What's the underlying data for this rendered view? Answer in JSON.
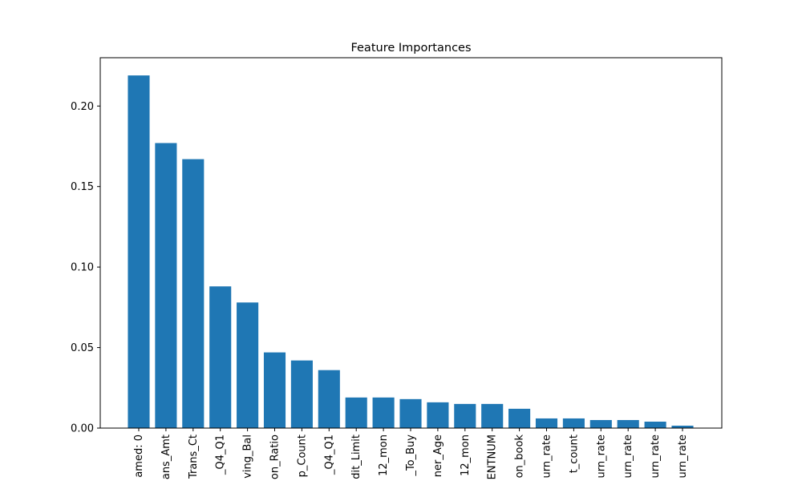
{
  "chart_data": {
    "type": "bar",
    "title": "Feature Importances",
    "xlabel": "",
    "ylabel": "",
    "ylim": [
      0,
      0.23
    ],
    "yticks": [
      0.0,
      0.05,
      0.1,
      0.15,
      0.2
    ],
    "ytick_labels": [
      "0.00",
      "0.05",
      "0.10",
      "0.15",
      "0.20"
    ],
    "categories": [
      "amed: 0",
      "ans_Amt",
      "Trans_Ct",
      "_Q4_Q1",
      "ving_Bal",
      "on_Ratio",
      "p_Count",
      "_Q4_Q1",
      "dit_Limit",
      "12_mon",
      "_To_Buy",
      "ner_Age",
      "12_mon",
      "ENTNUM",
      "on_book",
      "urn_rate",
      "t_count",
      "urn_rate",
      "urn_rate",
      "urn_rate",
      "urn_rate"
    ],
    "values": [
      0.219,
      0.177,
      0.167,
      0.088,
      0.078,
      0.047,
      0.042,
      0.036,
      0.019,
      0.019,
      0.018,
      0.016,
      0.015,
      0.015,
      0.012,
      0.006,
      0.006,
      0.005,
      0.005,
      0.004,
      0.0015
    ],
    "bar_color": "#1f77b4",
    "grid": false,
    "legend": "none"
  }
}
